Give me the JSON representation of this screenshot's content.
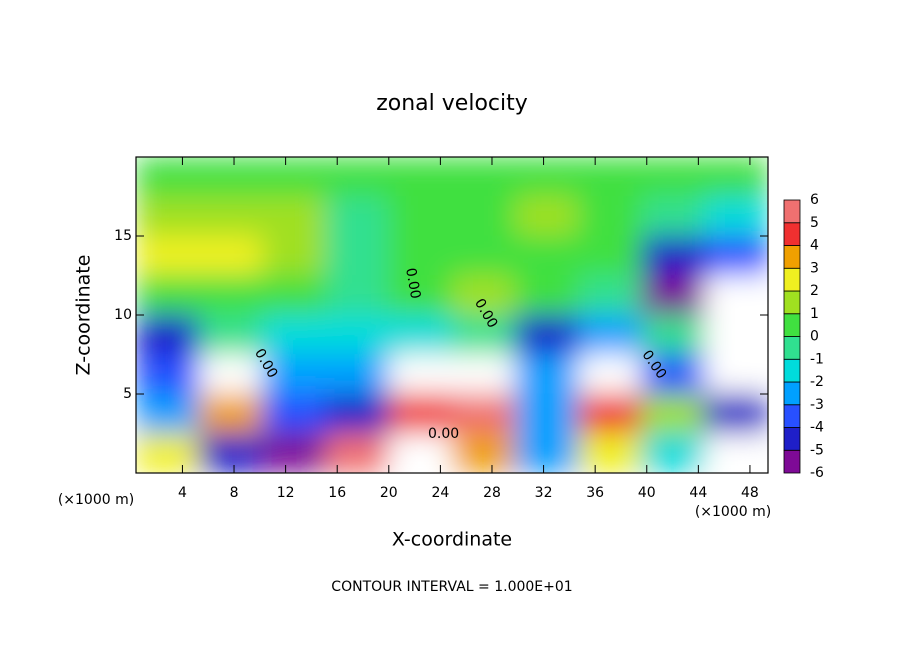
{
  "chart_data": {
    "type": "contourf",
    "title": "zonal velocity",
    "x_label": "X-coordinate",
    "y_label": "Z-coordinate",
    "x_unit": "(×1000 m)",
    "note": "CONTOUR INTERVAL = 1.000E+01",
    "contour_label": "0.00",
    "xlim": [
      0.4,
      49.4
    ],
    "ylim": [
      0,
      20
    ],
    "xticks": [
      4,
      8,
      12,
      16,
      20,
      24,
      28,
      32,
      36,
      40,
      44,
      48
    ],
    "yticks": [
      5,
      10,
      15
    ],
    "levels": [
      -6,
      -5,
      -4,
      -3,
      -2,
      -1,
      0,
      1,
      2,
      3,
      4,
      5,
      6
    ],
    "colors": [
      "#7e0a96",
      "#1f1fc8",
      "#2850ff",
      "#00a0ff",
      "#00dcdc",
      "#30e090",
      "#40e040",
      "#a0e020",
      "#f0f020",
      "#f0a000",
      "#f03030",
      "#f07070"
    ],
    "z": [
      [
        1,
        1,
        1,
        0.5,
        1,
        0.5,
        1,
        1,
        0.5,
        0.5
      ],
      [
        1.5,
        2,
        1.5,
        0,
        1,
        1,
        1.5,
        1,
        0,
        -1
      ],
      [
        3,
        2.5,
        1.5,
        0,
        0.5,
        1,
        1,
        0.5,
        -4,
        -3
      ],
      [
        1,
        1,
        1,
        0,
        1,
        2,
        0.5,
        0,
        -5,
        -6.5
      ],
      [
        -4,
        0,
        -1,
        -1,
        -1,
        0,
        -4,
        -2,
        0,
        -8
      ],
      [
        -3,
        8,
        -2,
        -2,
        8,
        8,
        -2,
        8,
        -3,
        -8
      ],
      [
        -2,
        4,
        -3,
        -4,
        5,
        6,
        -2,
        5,
        2,
        -4
      ],
      [
        3,
        -4,
        -6,
        6,
        8,
        4,
        -2,
        3,
        -1,
        8
      ]
    ]
  }
}
